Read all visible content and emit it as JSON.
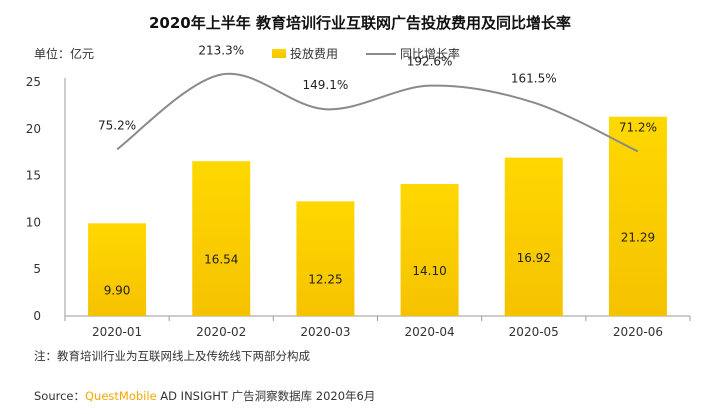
{
  "title": "2020年上半年 教育培训行业互联网广告投放费用及同比增长率",
  "unit_label": "单位：亿元",
  "note": "注：教育培训行业为互联网线上及传统线下两部分构成",
  "source": {
    "prefix": "Source：",
    "brand": "QuestMobile",
    "rest": " AD INSIGHT 广告洞察数据库 2020年6月"
  },
  "colors": {
    "bar": "#ffd000",
    "line": "#8a8a8a"
  },
  "chart_data": {
    "type": "bar",
    "categories": [
      "2020-01",
      "2020-02",
      "2020-03",
      "2020-04",
      "2020-05",
      "2020-06"
    ],
    "series": [
      {
        "name": "投放费用",
        "type": "bar",
        "values": [
          9.9,
          16.54,
          12.25,
          14.1,
          16.92,
          21.29
        ],
        "labels": [
          "9.90",
          "16.54",
          "12.25",
          "14.10",
          "16.92",
          "21.29"
        ]
      },
      {
        "name": "同比增长率",
        "type": "line",
        "values": [
          75.2,
          213.3,
          149.1,
          192.6,
          161.5,
          71.2
        ],
        "labels": [
          "75.2%",
          "213.3%",
          "149.1%",
          "192.6%",
          "161.5%",
          "71.2%"
        ]
      }
    ],
    "y_ticks": [
      "0",
      "5",
      "10",
      "15",
      "20",
      "25"
    ],
    "ylim": [
      0,
      25
    ],
    "legend_position": "top-center",
    "grid": false
  }
}
